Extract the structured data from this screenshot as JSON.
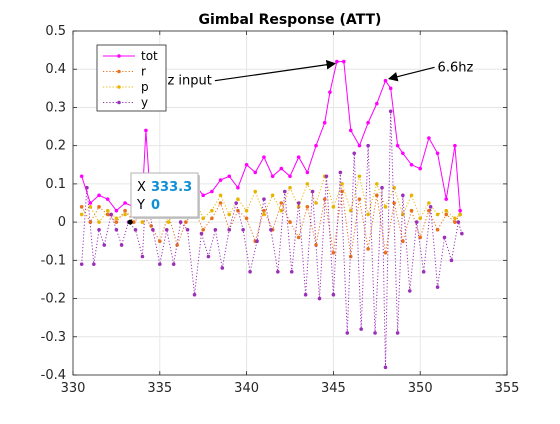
{
  "chart_data": {
    "type": "line",
    "title": "Gimbal Response (ATT)",
    "xlabel": "",
    "ylabel": "",
    "xlim": [
      330,
      355
    ],
    "ylim": [
      -0.4,
      0.5
    ],
    "x_ticks": [
      330,
      335,
      340,
      345,
      350,
      355
    ],
    "y_ticks": [
      -0.4,
      -0.3,
      -0.2,
      -0.1,
      0,
      0.1,
      0.2,
      0.3,
      0.4,
      0.5
    ],
    "grid": true,
    "legend_position": "top-left",
    "series": [
      {
        "name": "tot",
        "color": "#ff00ff",
        "style": "solid",
        "marker": "dot",
        "points": [
          [
            330.5,
            0.12
          ],
          [
            331.0,
            0.05
          ],
          [
            331.5,
            0.07
          ],
          [
            332.0,
            0.06
          ],
          [
            332.5,
            0.03
          ],
          [
            333.0,
            0.05
          ],
          [
            333.5,
            0.04
          ],
          [
            334.0,
            0.07
          ],
          [
            334.2,
            0.24
          ],
          [
            334.5,
            0.03
          ],
          [
            335.0,
            0.1
          ],
          [
            335.5,
            0.12
          ],
          [
            336.0,
            0.05
          ],
          [
            336.5,
            0.06
          ],
          [
            337.0,
            0.1
          ],
          [
            337.5,
            0.07
          ],
          [
            338.0,
            0.08
          ],
          [
            338.5,
            0.11
          ],
          [
            339.0,
            0.12
          ],
          [
            339.5,
            0.09
          ],
          [
            340.0,
            0.15
          ],
          [
            340.5,
            0.13
          ],
          [
            341.0,
            0.17
          ],
          [
            341.5,
            0.12
          ],
          [
            342.0,
            0.14
          ],
          [
            342.5,
            0.12
          ],
          [
            343.0,
            0.17
          ],
          [
            343.5,
            0.13
          ],
          [
            344.0,
            0.2
          ],
          [
            344.5,
            0.26
          ],
          [
            344.8,
            0.34
          ],
          [
            345.2,
            0.42
          ],
          [
            345.6,
            0.42
          ],
          [
            346.0,
            0.24
          ],
          [
            346.5,
            0.2
          ],
          [
            347.0,
            0.26
          ],
          [
            347.5,
            0.31
          ],
          [
            348.0,
            0.37
          ],
          [
            348.3,
            0.35
          ],
          [
            348.7,
            0.2
          ],
          [
            349.0,
            0.18
          ],
          [
            349.5,
            0.15
          ],
          [
            350.0,
            0.14
          ],
          [
            350.5,
            0.22
          ],
          [
            351.0,
            0.18
          ],
          [
            351.5,
            0.06
          ],
          [
            352.0,
            0.2
          ],
          [
            352.3,
            0.03
          ]
        ]
      },
      {
        "name": "r",
        "color": "#e8701a",
        "style": "dotted",
        "marker": "dot",
        "points": [
          [
            330.5,
            0.04
          ],
          [
            331.0,
            0.0
          ],
          [
            331.5,
            0.04
          ],
          [
            332.0,
            0.02
          ],
          [
            332.5,
            0.0
          ],
          [
            333.0,
            0.03
          ],
          [
            333.5,
            0.0
          ],
          [
            334.0,
            0.02
          ],
          [
            334.5,
            -0.01
          ],
          [
            335.0,
            -0.05
          ],
          [
            335.5,
            0.02
          ],
          [
            336.0,
            -0.06
          ],
          [
            336.5,
            0.0
          ],
          [
            337.0,
            0.03
          ],
          [
            337.5,
            -0.02
          ],
          [
            338.0,
            0.01
          ],
          [
            338.5,
            0.05
          ],
          [
            339.0,
            -0.02
          ],
          [
            339.5,
            0.03
          ],
          [
            340.0,
            0.01
          ],
          [
            340.5,
            -0.05
          ],
          [
            341.0,
            0.03
          ],
          [
            341.5,
            -0.02
          ],
          [
            342.0,
            0.05
          ],
          [
            342.5,
            0.0
          ],
          [
            343.0,
            -0.04
          ],
          [
            343.5,
            0.04
          ],
          [
            344.0,
            -0.06
          ],
          [
            344.5,
            0.06
          ],
          [
            345.0,
            -0.08
          ],
          [
            345.5,
            0.08
          ],
          [
            346.0,
            -0.09
          ],
          [
            346.5,
            0.06
          ],
          [
            347.0,
            -0.07
          ],
          [
            347.5,
            0.07
          ],
          [
            348.0,
            -0.08
          ],
          [
            348.5,
            0.05
          ],
          [
            349.0,
            -0.05
          ],
          [
            349.5,
            0.03
          ],
          [
            350.0,
            -0.04
          ],
          [
            350.5,
            0.03
          ],
          [
            351.0,
            -0.02
          ],
          [
            351.5,
            0.02
          ],
          [
            352.0,
            0.0
          ],
          [
            352.3,
            0.02
          ]
        ]
      },
      {
        "name": "p",
        "color": "#e8b400",
        "style": "dotted",
        "marker": "dot",
        "points": [
          [
            330.5,
            0.02
          ],
          [
            331.0,
            0.04
          ],
          [
            331.5,
            0.0
          ],
          [
            332.0,
            0.03
          ],
          [
            332.5,
            0.01
          ],
          [
            333.0,
            0.02
          ],
          [
            333.5,
            0.03
          ],
          [
            334.0,
            0.0
          ],
          [
            334.5,
            0.02
          ],
          [
            335.0,
            0.04
          ],
          [
            335.5,
            0.0
          ],
          [
            336.0,
            0.05
          ],
          [
            336.5,
            0.02
          ],
          [
            337.0,
            0.06
          ],
          [
            337.5,
            0.01
          ],
          [
            338.0,
            0.03
          ],
          [
            338.5,
            0.07
          ],
          [
            339.0,
            0.02
          ],
          [
            339.5,
            0.06
          ],
          [
            340.0,
            0.03
          ],
          [
            340.5,
            0.08
          ],
          [
            341.0,
            0.02
          ],
          [
            341.5,
            0.07
          ],
          [
            342.0,
            0.03
          ],
          [
            342.5,
            0.09
          ],
          [
            343.0,
            0.04
          ],
          [
            343.5,
            0.1
          ],
          [
            344.0,
            0.05
          ],
          [
            344.5,
            0.12
          ],
          [
            345.0,
            0.04
          ],
          [
            345.5,
            0.1
          ],
          [
            346.0,
            0.03
          ],
          [
            346.5,
            0.12
          ],
          [
            347.0,
            0.02
          ],
          [
            347.5,
            0.1
          ],
          [
            348.0,
            0.04
          ],
          [
            348.5,
            0.09
          ],
          [
            349.0,
            0.02
          ],
          [
            349.5,
            0.07
          ],
          [
            350.0,
            0.01
          ],
          [
            350.5,
            0.05
          ],
          [
            351.0,
            0.02
          ],
          [
            351.5,
            0.03
          ],
          [
            352.0,
            0.01
          ],
          [
            352.3,
            0.02
          ]
        ]
      },
      {
        "name": "y",
        "color": "#9b30b8",
        "style": "dotted",
        "marker": "dot",
        "points": [
          [
            330.5,
            -0.11
          ],
          [
            330.8,
            0.09
          ],
          [
            331.2,
            -0.11
          ],
          [
            331.5,
            -0.02
          ],
          [
            331.8,
            -0.06
          ],
          [
            332.2,
            0.02
          ],
          [
            332.5,
            -0.02
          ],
          [
            332.8,
            -0.06
          ],
          [
            333.2,
            0.0
          ],
          [
            333.6,
            -0.02
          ],
          [
            334.0,
            -0.09
          ],
          [
            334.2,
            0.08
          ],
          [
            334.6,
            -0.02
          ],
          [
            335.0,
            -0.11
          ],
          [
            335.4,
            -0.02
          ],
          [
            335.8,
            -0.11
          ],
          [
            336.2,
            0.0
          ],
          [
            336.6,
            -0.02
          ],
          [
            337.0,
            -0.19
          ],
          [
            337.4,
            -0.03
          ],
          [
            337.8,
            -0.09
          ],
          [
            338.2,
            -0.02
          ],
          [
            338.6,
            -0.12
          ],
          [
            339.0,
            -0.02
          ],
          [
            339.4,
            0.05
          ],
          [
            339.8,
            -0.02
          ],
          [
            340.2,
            -0.13
          ],
          [
            340.6,
            -0.05
          ],
          [
            341.0,
            0.06
          ],
          [
            341.4,
            -0.02
          ],
          [
            341.8,
            -0.13
          ],
          [
            342.2,
            0.08
          ],
          [
            342.6,
            -0.13
          ],
          [
            343.0,
            0.05
          ],
          [
            343.4,
            -0.19
          ],
          [
            343.8,
            0.08
          ],
          [
            344.2,
            -0.2
          ],
          [
            344.6,
            0.12
          ],
          [
            345.0,
            -0.19
          ],
          [
            345.4,
            0.13
          ],
          [
            345.8,
            -0.29
          ],
          [
            346.2,
            0.18
          ],
          [
            346.6,
            -0.28
          ],
          [
            347.0,
            0.2
          ],
          [
            347.4,
            -0.29
          ],
          [
            347.8,
            0.09
          ],
          [
            348.0,
            -0.38
          ],
          [
            348.3,
            0.29
          ],
          [
            348.7,
            -0.29
          ],
          [
            349.0,
            0.07
          ],
          [
            349.4,
            -0.18
          ],
          [
            349.8,
            0.0
          ],
          [
            350.2,
            -0.13
          ],
          [
            350.6,
            0.04
          ],
          [
            351.0,
            -0.17
          ],
          [
            351.4,
            -0.04
          ],
          [
            351.8,
            -0.1
          ],
          [
            352.2,
            0.0
          ],
          [
            352.4,
            -0.03
          ]
        ]
      }
    ],
    "annotations": [
      {
        "text": "3.9hz input",
        "x_text": 338.0,
        "y_text": 0.37,
        "x_arrow": 345.1,
        "y_arrow": 0.415
      },
      {
        "text": "6.6hz",
        "x_text": 351.0,
        "y_text": 0.405,
        "x_arrow": 348.2,
        "y_arrow": 0.375
      }
    ],
    "datatip": {
      "x_label": "X",
      "x_value": "333.3",
      "y_label": "Y",
      "y_value": "0",
      "x": 333.3,
      "y": 0
    }
  }
}
